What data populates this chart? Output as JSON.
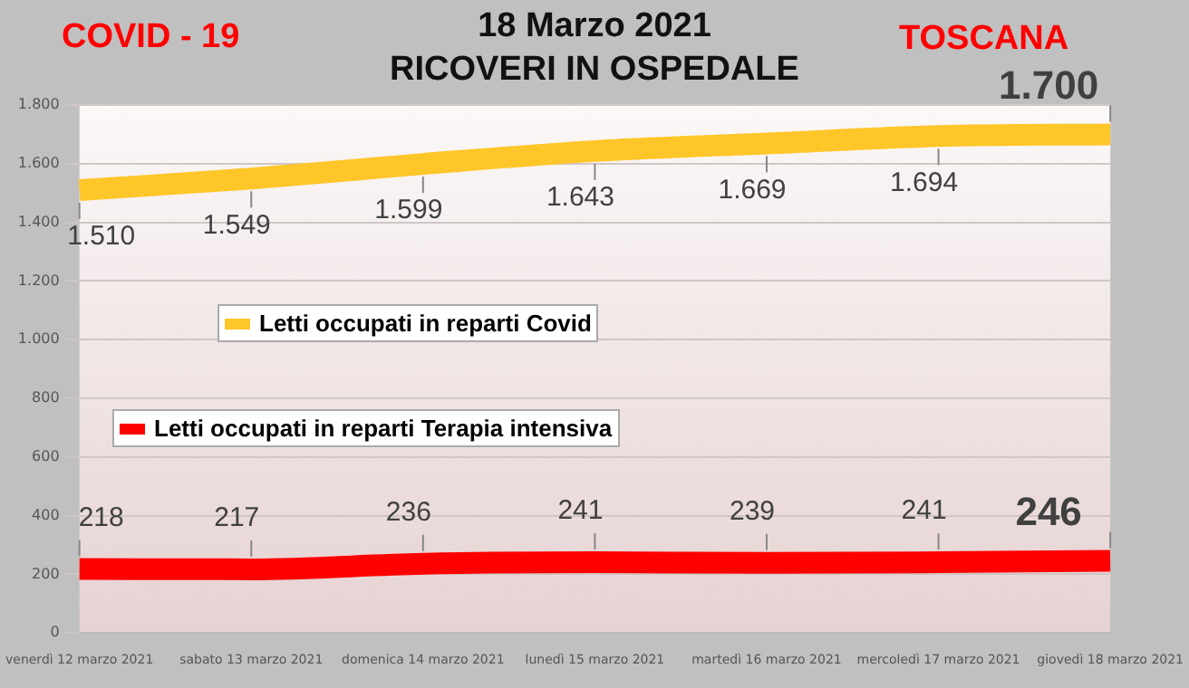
{
  "chart_data": {
    "type": "line",
    "title": "18 Marzo 2021",
    "subtitle": "RICOVERI IN OSPEDALE",
    "annotations": [
      "COVID - 19",
      "TOSCANA"
    ],
    "categories": [
      "venerdì 12 marzo 2021",
      "sabato 13 marzo 2021",
      "domenica 14 marzo 2021",
      "lunedì 15 marzo 2021",
      "martedì 16 marzo 2021",
      "mercoledì 17 marzo 2021",
      "giovedì 18 marzo 2021"
    ],
    "series": [
      {
        "name": "Letti occupati in reparti Covid",
        "color": "#ffc629",
        "values": [
          1510,
          1549,
          1599,
          1643,
          1669,
          1694,
          1700
        ],
        "value_labels": [
          "1.510",
          "1.549",
          "1.599",
          "1.643",
          "1.669",
          "1.694",
          "1.700"
        ]
      },
      {
        "name": "Letti occupati in reparti Terapia intensiva",
        "color": "#ff0000",
        "values": [
          218,
          217,
          236,
          241,
          239,
          241,
          246
        ],
        "value_labels": [
          "218",
          "217",
          "236",
          "241",
          "239",
          "241",
          "246"
        ]
      }
    ],
    "ylim": [
      0,
      1800
    ],
    "yticks": [
      0,
      {
        "value": 200,
        "label": "200"
      },
      {
        "value": 400,
        "label": "400"
      },
      {
        "value": 600,
        "label": "600"
      },
      {
        "value": 800,
        "label": "800"
      },
      {
        "value": 1000,
        "label": "1.000"
      },
      {
        "value": 1200,
        "label": "1.200"
      },
      {
        "value": 1400,
        "label": "1.400"
      },
      {
        "value": 1600,
        "label": "1.600"
      },
      {
        "value": 1800,
        "label": "1.800"
      }
    ],
    "grid": "y",
    "legend": "left",
    "marker": "none",
    "line_style": "solid"
  }
}
